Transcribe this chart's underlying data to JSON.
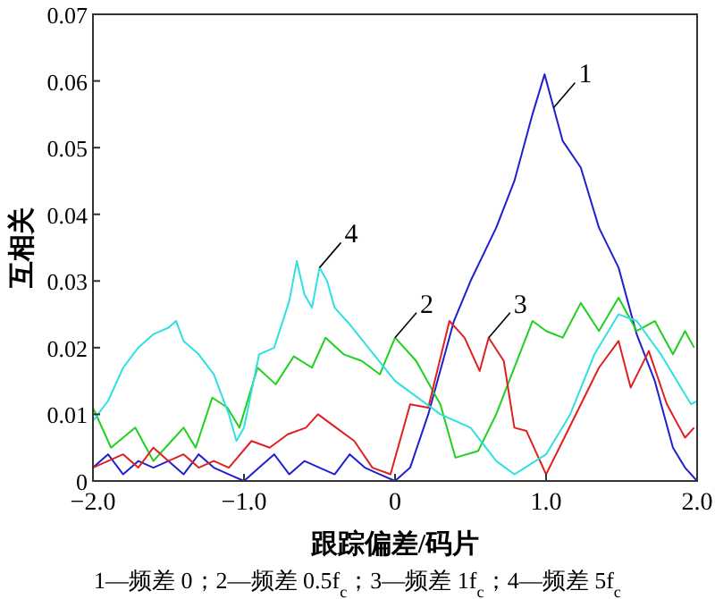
{
  "chart_data": {
    "type": "line",
    "xlabel": "跟踪偏差/码片",
    "ylabel": "互相关",
    "xlim": [
      -2,
      2
    ],
    "ylim": [
      0,
      0.07
    ],
    "xticks": [
      {
        "value": -2,
        "label": "−2.0"
      },
      {
        "value": -1,
        "label": "−1.0"
      },
      0,
      {
        "value": 1,
        "label": "1.0"
      },
      {
        "value": 2,
        "label": "2.0"
      }
    ],
    "yticks": [
      0,
      0.01,
      0.02,
      0.03,
      0.04,
      0.05,
      0.06,
      0.07
    ],
    "grid": false,
    "marker": "none",
    "line_style": "solid",
    "series": [
      {
        "color": "#2020d0",
        "x": [
          -2,
          -1.9,
          -1.8,
          -1.7,
          -1.6,
          -1.5,
          -1.4,
          -1.3,
          -1.2,
          -1.1,
          -1,
          -0.9,
          -0.8,
          -0.7,
          -0.6,
          -0.5,
          -0.4,
          -0.3,
          -0.2,
          -0.1,
          0,
          0.1,
          0.22,
          0.39,
          0.5,
          0.67,
          0.79,
          0.91,
          0.99,
          1.11,
          1.23,
          1.35,
          1.48,
          1.6,
          1.72,
          1.84,
          1.92,
          2
        ],
        "values": [
          0.002,
          0.004,
          0.001,
          0.003,
          0.002,
          0.003,
          0.001,
          0.004,
          0.002,
          0.001,
          0,
          0.002,
          0.004,
          0.001,
          0.003,
          0.002,
          0.001,
          0.004,
          0.002,
          0.001,
          0,
          0.002,
          0.01,
          0.024,
          0.03,
          0.038,
          0.045,
          0.055,
          0.061,
          0.051,
          0.047,
          0.038,
          0.032,
          0.022,
          0.015,
          0.005,
          0.002,
          0
        ]
      },
      {
        "color": "#20d020",
        "x": [
          -2,
          -1.88,
          -1.72,
          -1.6,
          -1.48,
          -1.4,
          -1.32,
          -1.21,
          -1.11,
          -1.03,
          -0.91,
          -0.79,
          -0.67,
          -0.55,
          -0.46,
          -0.34,
          -0.22,
          -0.1,
          0,
          0.14,
          0.3,
          0.4,
          0.55,
          0.67,
          0.79,
          0.91,
          1,
          1.11,
          1.23,
          1.35,
          1.48,
          1.6,
          1.72,
          1.84,
          1.92,
          1.98
        ],
        "values": [
          0.011,
          0.005,
          0.008,
          0.003,
          0.006,
          0.008,
          0.005,
          0.0125,
          0.011,
          0.008,
          0.017,
          0.0145,
          0.0187,
          0.017,
          0.0215,
          0.019,
          0.018,
          0.016,
          0.0215,
          0.018,
          0.0115,
          0.0035,
          0.0045,
          0.01,
          0.017,
          0.024,
          0.0225,
          0.0215,
          0.0267,
          0.0225,
          0.0275,
          0.0225,
          0.024,
          0.019,
          0.0225,
          0.02
        ]
      },
      {
        "color": "#e02020",
        "x": [
          -2,
          -1.9,
          -1.8,
          -1.7,
          -1.6,
          -1.5,
          -1.4,
          -1.3,
          -1.2,
          -1.1,
          -0.95,
          -0.83,
          -0.71,
          -0.59,
          -0.51,
          -0.39,
          -0.27,
          -0.15,
          -0.03,
          0.1,
          0.22,
          0.36,
          0.46,
          0.56,
          0.62,
          0.72,
          0.79,
          0.87,
          1,
          1.11,
          1.23,
          1.35,
          1.48,
          1.56,
          1.68,
          1.8,
          1.92,
          1.98
        ],
        "values": [
          0.002,
          0.003,
          0.004,
          0.002,
          0.005,
          0.003,
          0.004,
          0.002,
          0.003,
          0.002,
          0.006,
          0.005,
          0.007,
          0.008,
          0.01,
          0.008,
          0.006,
          0.002,
          0.001,
          0.0115,
          0.011,
          0.024,
          0.0215,
          0.0165,
          0.0215,
          0.018,
          0.008,
          0.0075,
          0.001,
          0.006,
          0.0115,
          0.017,
          0.021,
          0.014,
          0.0195,
          0.0115,
          0.0065,
          0.008
        ]
      },
      {
        "color": "#30e0e0",
        "x": [
          -2,
          -1.9,
          -1.8,
          -1.7,
          -1.6,
          -1.5,
          -1.45,
          -1.4,
          -1.3,
          -1.2,
          -1.1,
          -1.05,
          -1,
          -0.9,
          -0.8,
          -0.7,
          -0.65,
          -0.6,
          -0.55,
          -0.5,
          -0.45,
          -0.4,
          -0.3,
          0,
          0.3,
          0.5,
          0.67,
          0.79,
          1,
          1.16,
          1.32,
          1.48,
          1.6,
          1.76,
          1.96,
          2
        ],
        "values": [
          0.009,
          0.012,
          0.017,
          0.02,
          0.022,
          0.023,
          0.024,
          0.021,
          0.019,
          0.016,
          0.01,
          0.006,
          0.008,
          0.019,
          0.02,
          0.027,
          0.033,
          0.028,
          0.026,
          0.032,
          0.03,
          0.026,
          0.0235,
          0.015,
          0.01,
          0.008,
          0.003,
          0.001,
          0.004,
          0.01,
          0.019,
          0.025,
          0.024,
          0.019,
          0.0115,
          0.012
        ]
      }
    ],
    "annotations": [
      {
        "text": "1",
        "x": 1.05,
        "y": 0.056
      },
      {
        "text": "2",
        "x": 0,
        "y": 0.0215
      },
      {
        "text": "3",
        "x": 0.62,
        "y": 0.0215
      },
      {
        "text": "4",
        "x": -0.5,
        "y": 0.032
      },
      "1—频差 0；2—频差 0.5f$_{c}$；3—频差 1f$_{c}$；4—频差 5f$_{c}$"
    ]
  }
}
